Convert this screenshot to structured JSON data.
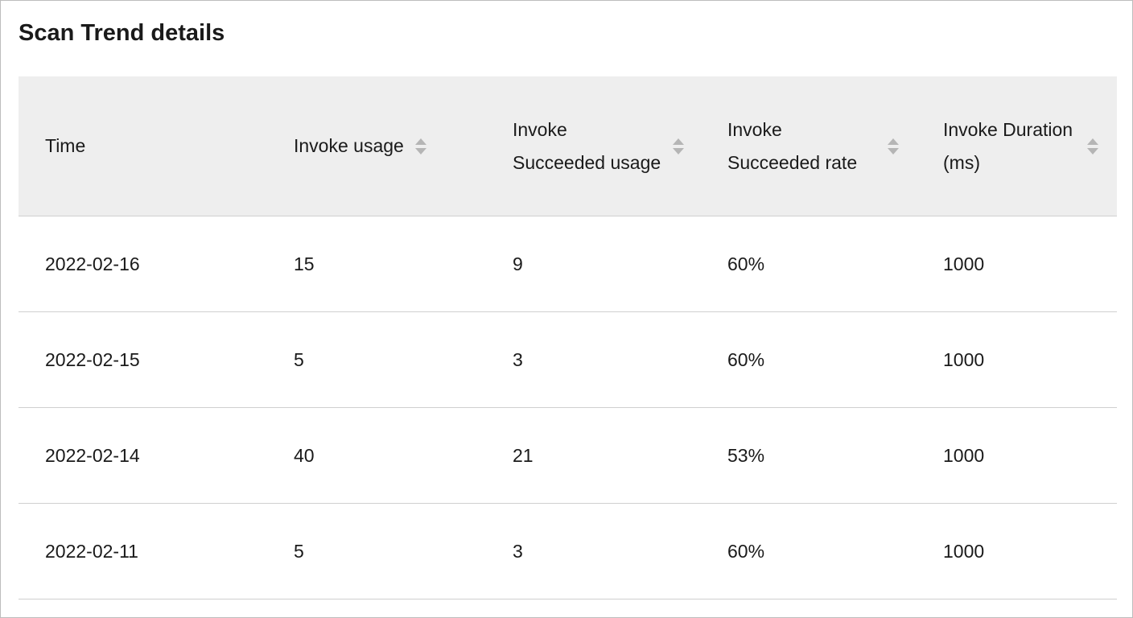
{
  "title": "Scan Trend details",
  "table": {
    "columns": [
      "Time",
      "Invoke usage",
      "Invoke Succeeded usage",
      "Invoke Succeeded rate",
      "Invoke Duration (ms)"
    ],
    "rows": [
      [
        "2022-02-16",
        "15",
        "9",
        "60%",
        "1000"
      ],
      [
        "2022-02-15",
        "5",
        "3",
        "60%",
        "1000"
      ],
      [
        "2022-02-14",
        "40",
        "21",
        "53%",
        "1000"
      ],
      [
        "2022-02-11",
        "5",
        "3",
        "60%",
        "1000"
      ]
    ]
  }
}
